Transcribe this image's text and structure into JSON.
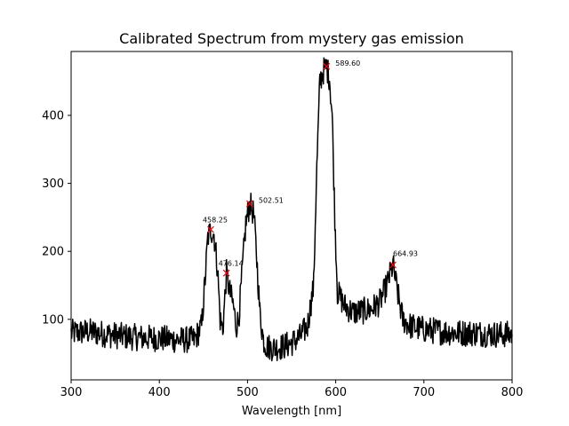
{
  "chart_data": {
    "type": "line",
    "title": "Calibrated Spectrum from mystery gas emission",
    "xlabel": "Wavelength [nm]",
    "ylabel": "",
    "xlim": [
      300,
      800
    ],
    "ylim": [
      11,
      494
    ],
    "x_ticks": [
      300,
      400,
      500,
      600,
      700,
      800
    ],
    "y_ticks": [
      100,
      200,
      300,
      400
    ],
    "x_tick_labels": [
      "300",
      "400",
      "500",
      "600",
      "700",
      "800"
    ],
    "y_tick_labels": [
      "100",
      "200",
      "300",
      "400"
    ],
    "grid": false,
    "line_color": "#000000",
    "marker_color": "#ff0000",
    "series": [
      {
        "x": [
          300,
          320,
          340,
          360,
          380,
          400,
          420,
          440,
          448,
          452,
          455,
          458.25,
          462,
          466,
          469,
          472,
          476.14,
          480,
          484,
          487,
          490,
          494,
          498,
          502.51,
          507,
          510,
          514,
          518,
          522,
          530,
          540,
          550,
          560,
          568,
          575,
          578,
          582,
          586,
          589.6,
          593,
          596,
          599,
          602,
          610,
          620,
          630,
          640,
          650,
          658,
          664.93,
          670,
          676,
          685,
          700,
          720,
          740,
          760,
          780,
          800
        ],
        "y": [
          80,
          82,
          78,
          75,
          73,
          72,
          70,
          70,
          90,
          160,
          220,
          232,
          225,
          175,
          100,
          85,
          168,
          140,
          120,
          90,
          100,
          170,
          240,
          270,
          255,
          200,
          110,
          70,
          60,
          58,
          60,
          65,
          75,
          90,
          150,
          300,
          450,
          465,
          472,
          455,
          400,
          250,
          140,
          120,
          110,
          112,
          115,
          125,
          150,
          180,
          140,
          100,
          90,
          85,
          82,
          80,
          80,
          78,
          78
        ]
      }
    ],
    "peaks": [
      {
        "x": 458.25,
        "y": 232,
        "label": "458.25"
      },
      {
        "x": 476.14,
        "y": 168,
        "label": "476.14"
      },
      {
        "x": 502.51,
        "y": 270,
        "label": "502.51"
      },
      {
        "x": 589.6,
        "y": 472,
        "label": "589.60"
      },
      {
        "x": 664.93,
        "y": 180,
        "label": "664.93"
      }
    ]
  }
}
